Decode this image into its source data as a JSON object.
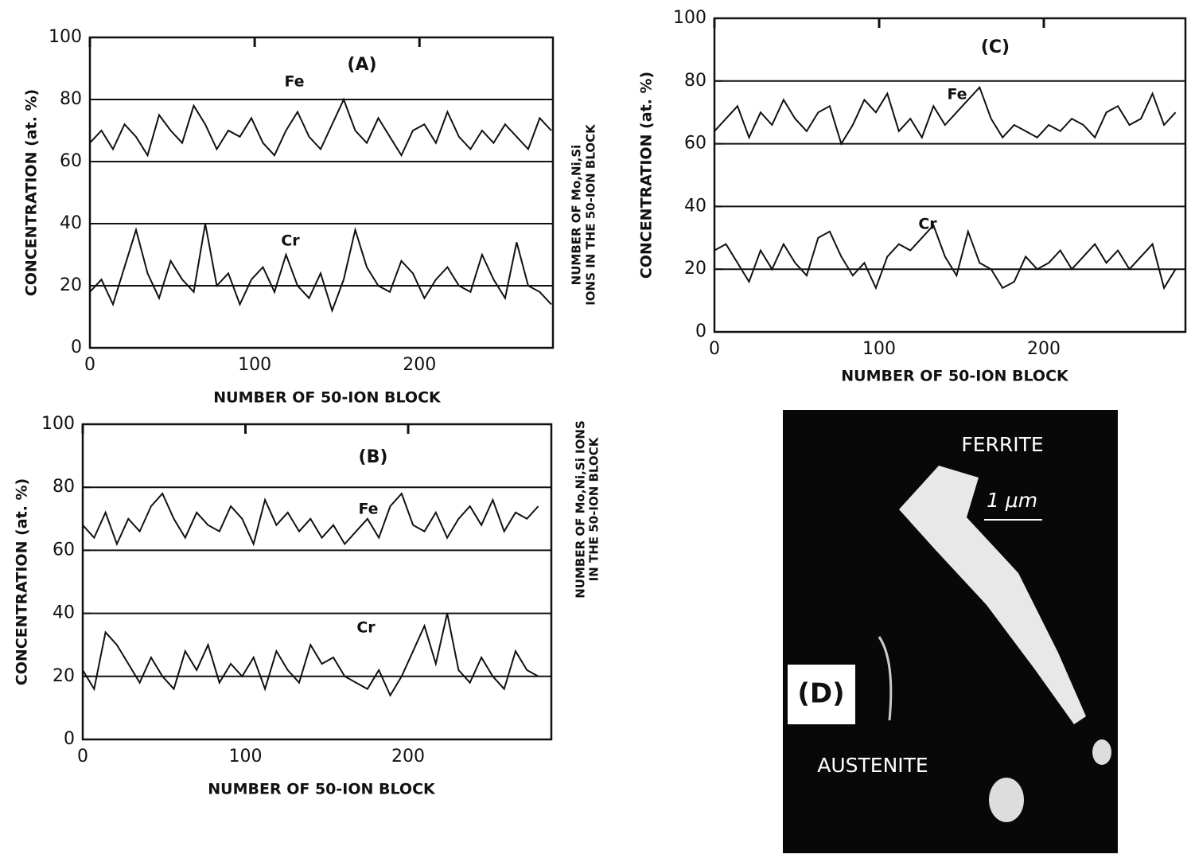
{
  "chart_data": [
    {
      "type": "line",
      "title": "(A)",
      "xlabel": "NUMBER OF 50-ION BLOCK",
      "ylabel": "CONCENTRATION (at. %)",
      "y2label": [
        "NUMBER OF Mo,Ni,Si",
        "IONS IN THE 50-ION BLOCK"
      ],
      "xlim": [
        0,
        281
      ],
      "ylim": [
        0,
        100
      ],
      "xticks": [
        0,
        100,
        200
      ],
      "yticks": [
        0,
        20,
        40,
        60,
        80,
        100
      ],
      "hlines": [
        20,
        40,
        60,
        80
      ],
      "x": [
        0,
        7,
        14,
        21,
        28,
        35,
        42,
        49,
        56,
        63,
        70,
        77,
        84,
        91,
        98,
        105,
        112,
        119,
        126,
        133,
        140,
        147,
        154,
        161,
        168,
        175,
        182,
        189,
        196,
        203,
        210,
        217,
        224,
        231,
        238,
        245,
        252,
        259,
        266,
        273,
        280
      ],
      "series": [
        {
          "name": "Fe",
          "color": "#111111",
          "values": [
            66,
            70,
            64,
            72,
            68,
            62,
            75,
            70,
            66,
            78,
            72,
            64,
            70,
            68,
            74,
            66,
            62,
            70,
            76,
            68,
            64,
            72,
            80,
            70,
            66,
            74,
            68,
            62,
            70,
            72,
            66,
            76,
            68,
            64,
            70,
            66,
            72,
            68,
            64,
            74,
            70
          ]
        },
        {
          "name": "Cr",
          "color": "#111111",
          "values": [
            18,
            22,
            14,
            26,
            38,
            24,
            16,
            28,
            22,
            18,
            40,
            20,
            24,
            14,
            22,
            26,
            18,
            30,
            20,
            16,
            24,
            12,
            22,
            38,
            26,
            20,
            18,
            28,
            24,
            16,
            22,
            26,
            20,
            18,
            30,
            22,
            16,
            34,
            20,
            18,
            14
          ]
        }
      ]
    },
    {
      "type": "line",
      "title": "(B)",
      "xlabel": "NUMBER OF 50-ION BLOCK",
      "ylabel": "CONCENTRATION (at. %)",
      "y2label": [
        "NUMBER OF Mo,Ni,Si IONS",
        "IN THE 50-ION BLOCK"
      ],
      "xlim": [
        0,
        288
      ],
      "ylim": [
        0,
        100
      ],
      "xticks": [
        0,
        100,
        200
      ],
      "yticks": [
        0,
        20,
        40,
        60,
        80,
        100
      ],
      "hlines": [
        20,
        40,
        60,
        80
      ],
      "x": [
        0,
        7,
        14,
        21,
        28,
        35,
        42,
        49,
        56,
        63,
        70,
        77,
        84,
        91,
        98,
        105,
        112,
        119,
        126,
        133,
        140,
        147,
        154,
        161,
        168,
        175,
        182,
        189,
        196,
        203,
        210,
        217,
        224,
        231,
        238,
        245,
        252,
        259,
        266,
        273,
        280
      ],
      "series": [
        {
          "name": "Fe",
          "color": "#111111",
          "values": [
            68,
            64,
            72,
            62,
            70,
            66,
            74,
            78,
            70,
            64,
            72,
            68,
            66,
            74,
            70,
            62,
            76,
            68,
            72,
            66,
            70,
            64,
            68,
            62,
            66,
            70,
            64,
            74,
            78,
            68,
            66,
            72,
            64,
            70,
            74,
            68,
            76,
            66,
            72,
            70,
            74
          ]
        },
        {
          "name": "Cr",
          "color": "#111111",
          "values": [
            22,
            16,
            34,
            30,
            24,
            18,
            26,
            20,
            16,
            28,
            22,
            30,
            18,
            24,
            20,
            26,
            16,
            28,
            22,
            18,
            30,
            24,
            26,
            20,
            18,
            16,
            22,
            14,
            20,
            28,
            36,
            24,
            40,
            22,
            18,
            26,
            20,
            16,
            28,
            22,
            20
          ]
        }
      ]
    },
    {
      "type": "line",
      "title": "(C)",
      "xlabel": "NUMBER OF 50-ION BLOCK",
      "ylabel": "CONCENTRATION (at. %)",
      "xlim": [
        0,
        286
      ],
      "ylim": [
        0,
        100
      ],
      "xticks": [
        0,
        100,
        200
      ],
      "yticks": [
        0,
        20,
        40,
        60,
        80,
        100
      ],
      "hlines": [
        20,
        40,
        60,
        80
      ],
      "x": [
        0,
        7,
        14,
        21,
        28,
        35,
        42,
        49,
        56,
        63,
        70,
        77,
        84,
        91,
        98,
        105,
        112,
        119,
        126,
        133,
        140,
        147,
        154,
        161,
        168,
        175,
        182,
        189,
        196,
        203,
        210,
        217,
        224,
        231,
        238,
        245,
        252,
        259,
        266,
        273,
        280
      ],
      "series": [
        {
          "name": "Fe",
          "color": "#111111",
          "values": [
            64,
            68,
            72,
            62,
            70,
            66,
            74,
            68,
            64,
            70,
            72,
            60,
            66,
            74,
            70,
            76,
            64,
            68,
            62,
            72,
            66,
            70,
            74,
            78,
            68,
            62,
            66,
            64,
            62,
            66,
            64,
            68,
            66,
            62,
            70,
            72,
            66,
            68,
            76,
            66,
            70
          ]
        },
        {
          "name": "Cr",
          "color": "#111111",
          "values": [
            26,
            28,
            22,
            16,
            26,
            20,
            28,
            22,
            18,
            30,
            32,
            24,
            18,
            22,
            14,
            24,
            28,
            26,
            30,
            34,
            24,
            18,
            32,
            22,
            20,
            14,
            16,
            24,
            20,
            22,
            26,
            20,
            24,
            28,
            22,
            26,
            20,
            24,
            28,
            14,
            20
          ]
        }
      ]
    }
  ],
  "image": {
    "label": "(D)",
    "phase_top": "FERRITE",
    "phase_bottom": "AUSTENITE",
    "scale_bar": "1 μm"
  }
}
